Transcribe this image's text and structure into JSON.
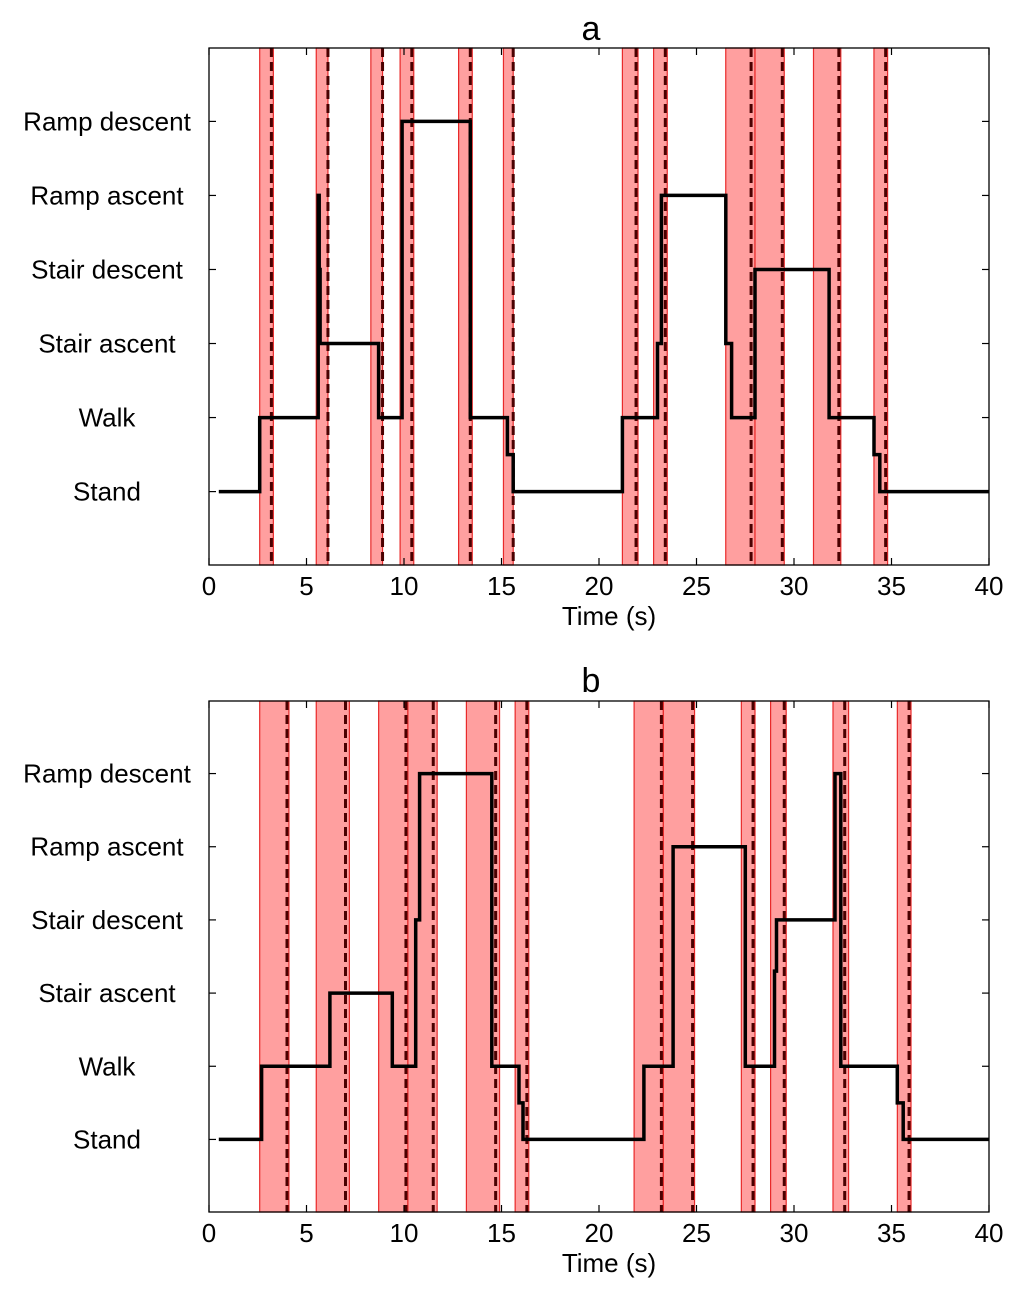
{
  "chart_data": [
    {
      "type": "line",
      "title": "a",
      "xlabel": "Time (s)",
      "ylabel": "",
      "xlim": [
        0,
        40
      ],
      "xticks": [
        0,
        5,
        10,
        15,
        20,
        25,
        30,
        35,
        40
      ],
      "xtick_labels": [
        "0",
        "5",
        "10",
        "15",
        "20",
        "25",
        "30",
        "35",
        "40"
      ],
      "categories": [
        "Stand",
        "Walk",
        "Stair ascent",
        "Stair descent",
        "Ramp ascent",
        "Ramp descent"
      ],
      "grid": false,
      "colors": {
        "band": "#ff9f9f",
        "band_edge": "#e82a2a",
        "line": "#000000",
        "dashed": "#4a0000"
      },
      "bands": [
        [
          2.6,
          3.3
        ],
        [
          5.5,
          6.1
        ],
        [
          8.3,
          8.9
        ],
        [
          9.8,
          10.5
        ],
        [
          12.8,
          13.5
        ],
        [
          15.1,
          15.6
        ],
        [
          21.2,
          22.0
        ],
        [
          22.8,
          23.5
        ],
        [
          26.5,
          28.0
        ],
        [
          28.0,
          29.5
        ],
        [
          31.0,
          32.4
        ],
        [
          34.1,
          34.8
        ]
      ],
      "dashed_x": [
        3.2,
        6.1,
        8.9,
        10.4,
        13.4,
        15.6,
        21.9,
        23.4,
        27.8,
        29.4,
        32.3,
        34.7
      ],
      "steps": [
        [
          0.5,
          0
        ],
        [
          2.6,
          0
        ],
        [
          2.6,
          1
        ],
        [
          5.6,
          1
        ],
        [
          5.6,
          4
        ],
        [
          5.65,
          4
        ],
        [
          5.65,
          3
        ],
        [
          5.7,
          3
        ],
        [
          5.7,
          2
        ],
        [
          8.7,
          2
        ],
        [
          8.7,
          1
        ],
        [
          9.9,
          1
        ],
        [
          9.9,
          5
        ],
        [
          13.4,
          5
        ],
        [
          13.4,
          1
        ],
        [
          15.3,
          1
        ],
        [
          15.3,
          0.5
        ],
        [
          15.6,
          0.5
        ],
        [
          15.6,
          0
        ],
        [
          21.2,
          0
        ],
        [
          21.2,
          1
        ],
        [
          23.0,
          1
        ],
        [
          23.0,
          2
        ],
        [
          23.2,
          2
        ],
        [
          23.2,
          4
        ],
        [
          26.5,
          4
        ],
        [
          26.5,
          2
        ],
        [
          26.8,
          2
        ],
        [
          26.8,
          1
        ],
        [
          28.0,
          1
        ],
        [
          28.0,
          3
        ],
        [
          31.8,
          3
        ],
        [
          31.8,
          1
        ],
        [
          34.1,
          1
        ],
        [
          34.1,
          0.5
        ],
        [
          34.4,
          0.5
        ],
        [
          34.4,
          0
        ],
        [
          40,
          0
        ]
      ]
    },
    {
      "type": "line",
      "title": "b",
      "xlabel": "Time (s)",
      "ylabel": "",
      "xlim": [
        0,
        40
      ],
      "xticks": [
        0,
        5,
        10,
        15,
        20,
        25,
        30,
        35,
        40
      ],
      "xtick_labels": [
        "0",
        "5",
        "10",
        "15",
        "20",
        "25",
        "30",
        "35",
        "40"
      ],
      "categories": [
        "Stand",
        "Walk",
        "Stair ascent",
        "Stair descent",
        "Ramp ascent",
        "Ramp descent"
      ],
      "grid": false,
      "colors": {
        "band": "#ff9f9f",
        "band_edge": "#e82a2a",
        "line": "#000000",
        "dashed": "#4a0000"
      },
      "bands": [
        [
          2.6,
          4.1
        ],
        [
          5.5,
          7.2
        ],
        [
          8.7,
          10.2
        ],
        [
          10.2,
          11.7
        ],
        [
          13.2,
          14.9
        ],
        [
          15.7,
          16.4
        ],
        [
          21.8,
          23.3
        ],
        [
          23.3,
          24.9
        ],
        [
          27.3,
          28.0
        ],
        [
          28.8,
          29.6
        ],
        [
          32.0,
          32.8
        ],
        [
          35.3,
          36.0
        ]
      ],
      "dashed_x": [
        4.0,
        7.0,
        10.1,
        11.5,
        14.7,
        16.3,
        23.2,
        24.8,
        27.9,
        29.5,
        32.6,
        35.9
      ],
      "steps": [
        [
          0.5,
          0
        ],
        [
          2.7,
          0
        ],
        [
          2.7,
          1
        ],
        [
          6.2,
          1
        ],
        [
          6.2,
          2
        ],
        [
          9.4,
          2
        ],
        [
          9.4,
          1
        ],
        [
          10.6,
          1
        ],
        [
          10.6,
          3
        ],
        [
          10.8,
          3
        ],
        [
          10.8,
          5
        ],
        [
          14.5,
          5
        ],
        [
          14.5,
          1
        ],
        [
          15.9,
          1
        ],
        [
          15.9,
          0.5
        ],
        [
          16.1,
          0.5
        ],
        [
          16.1,
          0
        ],
        [
          22.3,
          0
        ],
        [
          22.3,
          1
        ],
        [
          23.8,
          1
        ],
        [
          23.8,
          4
        ],
        [
          27.5,
          4
        ],
        [
          27.5,
          1
        ],
        [
          29.0,
          1
        ],
        [
          29.0,
          2.3
        ],
        [
          29.1,
          2.3
        ],
        [
          29.1,
          3
        ],
        [
          32.1,
          3
        ],
        [
          32.1,
          5
        ],
        [
          32.4,
          5
        ],
        [
          32.4,
          1
        ],
        [
          35.3,
          1
        ],
        [
          35.3,
          0.5
        ],
        [
          35.6,
          0.5
        ],
        [
          35.6,
          0
        ],
        [
          40,
          0
        ]
      ]
    }
  ]
}
